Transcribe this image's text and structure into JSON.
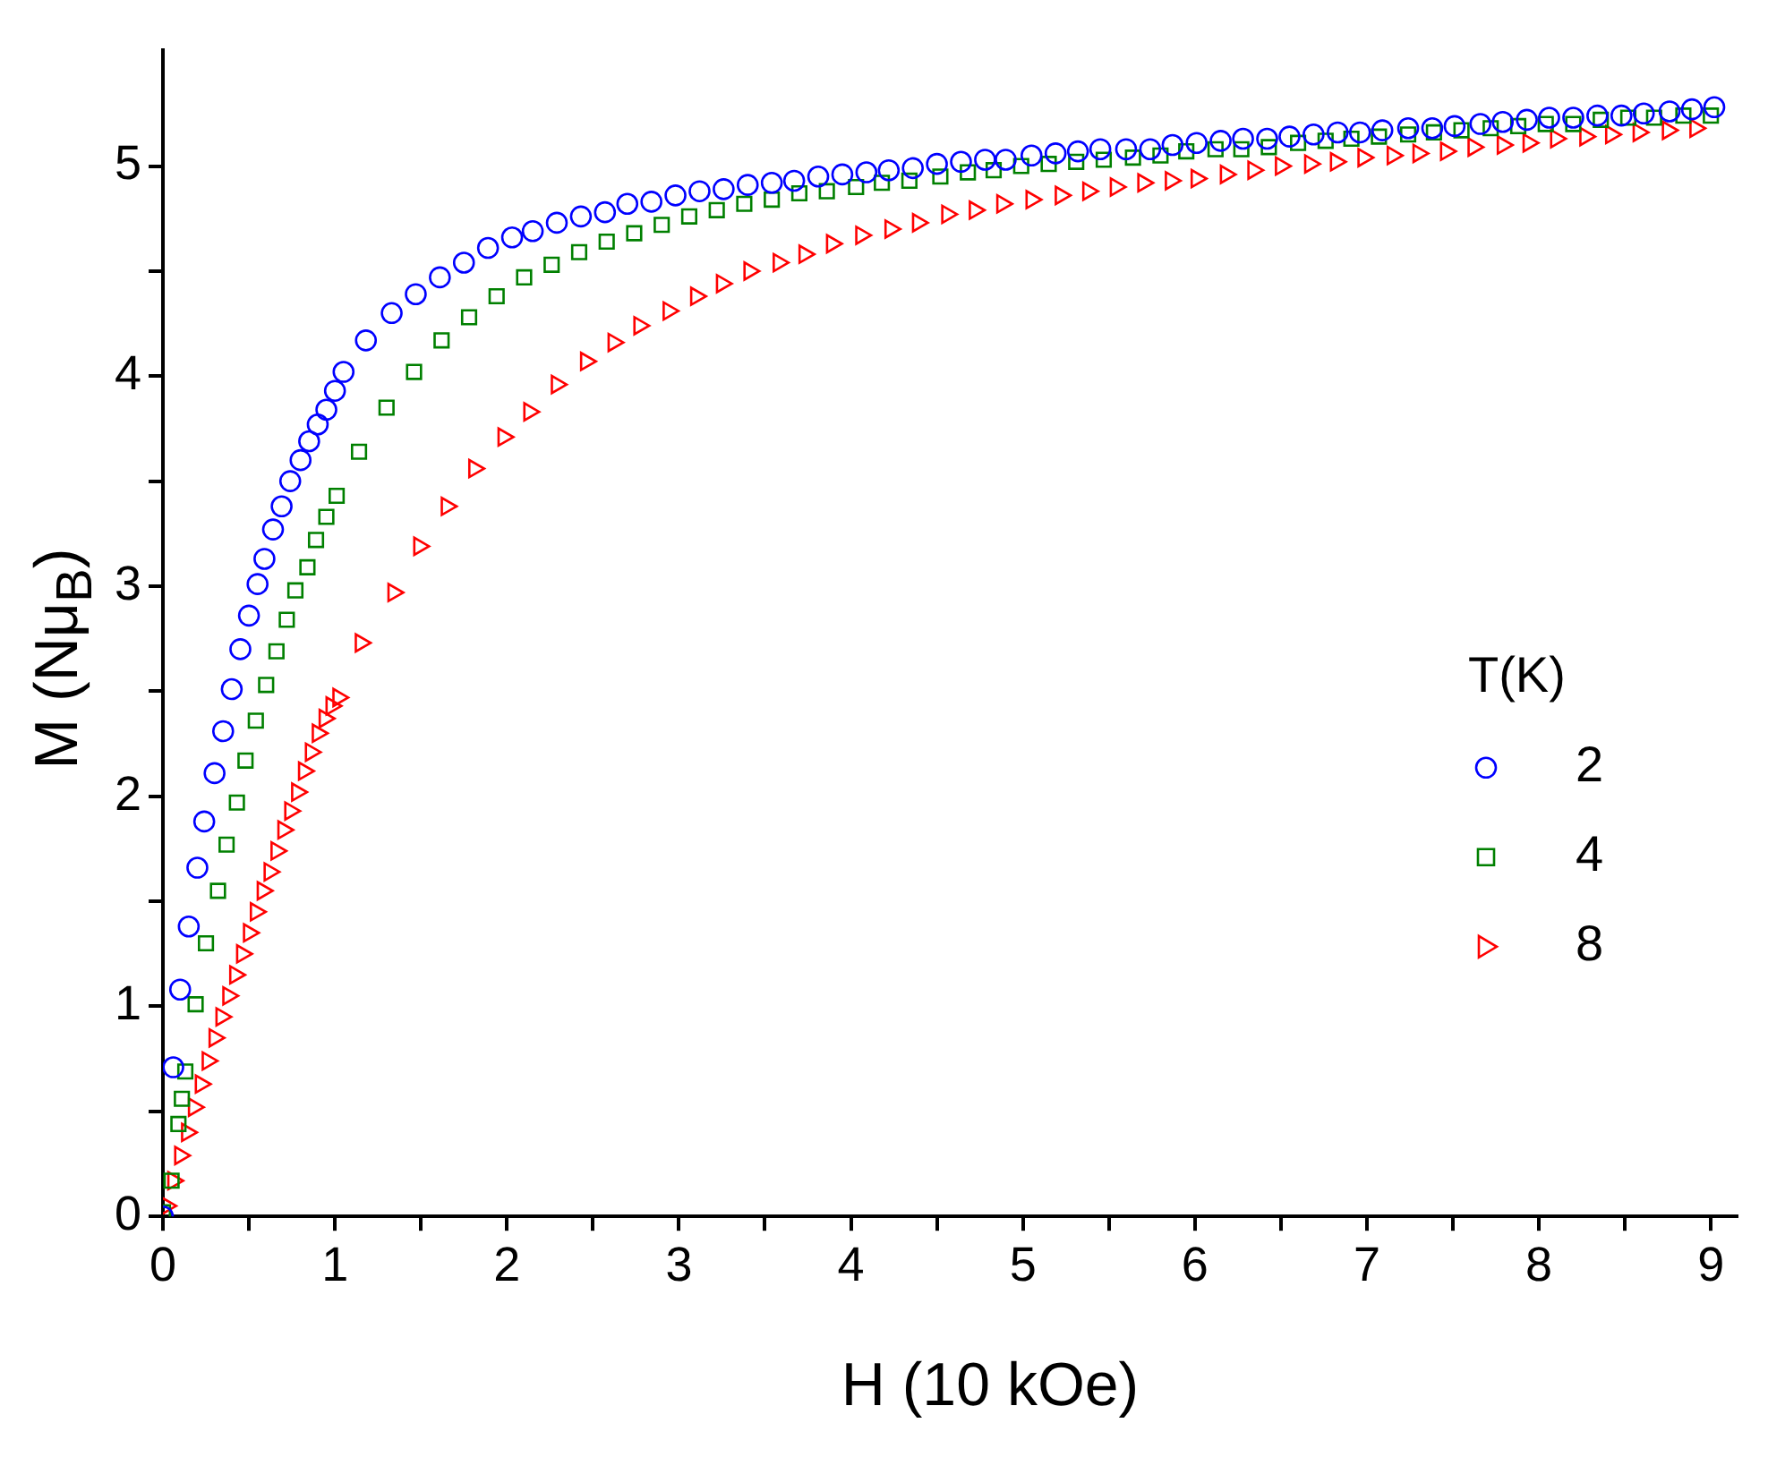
{
  "chart_data": {
    "type": "scatter",
    "xlabel": "H (10 kOe)",
    "ylabel": "M (Nμ$_{B}$)",
    "legend_title": "T(K)",
    "legend": "right",
    "grid": false,
    "xlim": [
      0,
      9.15
    ],
    "ylim": [
      0,
      5.55
    ],
    "xticks": [
      0,
      {
        "value": 0.5,
        "label": null
      },
      1,
      {
        "value": 1.5,
        "label": null
      },
      2,
      {
        "value": 2.5,
        "label": null
      },
      3,
      {
        "value": 3.5,
        "label": null
      },
      4,
      {
        "value": 4.5,
        "label": null
      },
      5,
      {
        "value": 5.5,
        "label": null
      },
      6,
      {
        "value": 6.5,
        "label": null
      },
      7,
      {
        "value": 7.5,
        "label": null
      },
      8,
      {
        "value": 8.5,
        "label": null
      },
      9
    ],
    "yticks": [
      0,
      {
        "value": 0.5,
        "label": null
      },
      1,
      {
        "value": 1.5,
        "label": null
      },
      2,
      {
        "value": 2.5,
        "label": null
      },
      3,
      {
        "value": 3.5,
        "label": null
      },
      4,
      {
        "value": 4.5,
        "label": null
      },
      5
    ],
    "series": [
      {
        "name": "2",
        "color": "#0000ff",
        "marker": "circle",
        "x": [
          0,
          0.06,
          0.1,
          0.15,
          0.2,
          0.24,
          0.3,
          0.35,
          0.4,
          0.45,
          0.5,
          0.55,
          0.59,
          0.64,
          0.69,
          0.74,
          0.8,
          0.85,
          0.9,
          0.95,
          1.0,
          1.05,
          1.18,
          1.33,
          1.47,
          1.61,
          1.75,
          1.89,
          2.03,
          2.15,
          2.29,
          2.43,
          2.57,
          2.7,
          2.84,
          2.98,
          3.12,
          3.26,
          3.4,
          3.54,
          3.67,
          3.81,
          3.95,
          4.09,
          4.22,
          4.36,
          4.5,
          4.64,
          4.78,
          4.9,
          5.05,
          5.19,
          5.32,
          5.45,
          5.6,
          5.74,
          5.87,
          6.01,
          6.15,
          6.28,
          6.42,
          6.55,
          6.69,
          6.83,
          6.96,
          7.09,
          7.24,
          7.38,
          7.51,
          7.66,
          7.79,
          7.93,
          8.06,
          8.2,
          8.34,
          8.48,
          8.61,
          8.76,
          8.89,
          9.02
        ],
        "values": [
          0,
          0.71,
          1.08,
          1.38,
          1.66,
          1.88,
          2.11,
          2.31,
          2.51,
          2.7,
          2.86,
          3.01,
          3.13,
          3.27,
          3.38,
          3.5,
          3.6,
          3.69,
          3.77,
          3.84,
          3.93,
          4.02,
          4.17,
          4.3,
          4.39,
          4.47,
          4.54,
          4.61,
          4.66,
          4.69,
          4.73,
          4.76,
          4.78,
          4.82,
          4.83,
          4.86,
          4.88,
          4.89,
          4.91,
          4.92,
          4.93,
          4.95,
          4.96,
          4.97,
          4.98,
          4.99,
          5.01,
          5.02,
          5.03,
          5.03,
          5.05,
          5.06,
          5.07,
          5.08,
          5.08,
          5.08,
          5.1,
          5.11,
          5.12,
          5.13,
          5.13,
          5.14,
          5.15,
          5.16,
          5.16,
          5.17,
          5.18,
          5.18,
          5.19,
          5.2,
          5.21,
          5.22,
          5.23,
          5.23,
          5.24,
          5.24,
          5.25,
          5.26,
          5.27,
          5.28
        ]
      },
      {
        "name": "4",
        "color": "#008000",
        "marker": "square",
        "x": [
          0,
          0.05,
          0.09,
          0.11,
          0.13,
          0.19,
          0.25,
          0.32,
          0.37,
          0.43,
          0.48,
          0.54,
          0.6,
          0.66,
          0.72,
          0.77,
          0.84,
          0.89,
          0.95,
          1.01,
          1.14,
          1.3,
          1.46,
          1.62,
          1.78,
          1.94,
          2.1,
          2.26,
          2.42,
          2.58,
          2.74,
          2.9,
          3.06,
          3.22,
          3.38,
          3.54,
          3.7,
          3.86,
          4.03,
          4.18,
          4.34,
          4.52,
          4.68,
          4.83,
          4.99,
          5.15,
          5.31,
          5.47,
          5.64,
          5.8,
          5.95,
          6.12,
          6.27,
          6.43,
          6.6,
          6.76,
          6.91,
          7.07,
          7.24,
          7.39,
          7.55,
          7.72,
          7.88,
          8.04,
          8.2,
          8.36,
          8.52,
          8.67,
          8.84,
          9.0
        ],
        "values": [
          0.02,
          0.17,
          0.44,
          0.56,
          0.69,
          1.01,
          1.3,
          1.55,
          1.77,
          1.97,
          2.17,
          2.36,
          2.53,
          2.69,
          2.84,
          2.98,
          3.09,
          3.22,
          3.33,
          3.43,
          3.64,
          3.85,
          4.02,
          4.17,
          4.28,
          4.38,
          4.47,
          4.53,
          4.59,
          4.64,
          4.68,
          4.72,
          4.76,
          4.79,
          4.82,
          4.84,
          4.87,
          4.88,
          4.9,
          4.92,
          4.93,
          4.95,
          4.97,
          4.98,
          5.0,
          5.01,
          5.02,
          5.03,
          5.04,
          5.05,
          5.07,
          5.08,
          5.08,
          5.09,
          5.11,
          5.12,
          5.13,
          5.14,
          5.15,
          5.16,
          5.17,
          5.18,
          5.19,
          5.2,
          5.2,
          5.22,
          5.23,
          5.23,
          5.24,
          5.24
        ]
      },
      {
        "name": "8",
        "color": "#ff0000",
        "marker": "triangle",
        "x": [
          0.02,
          0.06,
          0.1,
          0.14,
          0.18,
          0.22,
          0.26,
          0.3,
          0.34,
          0.38,
          0.42,
          0.46,
          0.5,
          0.54,
          0.58,
          0.62,
          0.66,
          0.7,
          0.74,
          0.78,
          0.82,
          0.86,
          0.9,
          0.94,
          0.98,
          1.02,
          1.15,
          1.34,
          1.49,
          1.65,
          1.81,
          1.98,
          2.13,
          2.29,
          2.46,
          2.62,
          2.77,
          2.94,
          3.1,
          3.25,
          3.41,
          3.58,
          3.73,
          3.89,
          4.06,
          4.23,
          4.39,
          4.56,
          4.72,
          4.88,
          5.05,
          5.22,
          5.38,
          5.54,
          5.7,
          5.86,
          6.01,
          6.18,
          6.34,
          6.5,
          6.67,
          6.82,
          6.98,
          7.15,
          7.3,
          7.46,
          7.62,
          7.79,
          7.94,
          8.1,
          8.27,
          8.42,
          8.58,
          8.75,
          8.91
        ],
        "values": [
          0.05,
          0.17,
          0.29,
          0.4,
          0.52,
          0.63,
          0.74,
          0.85,
          0.95,
          1.05,
          1.15,
          1.25,
          1.35,
          1.45,
          1.55,
          1.64,
          1.74,
          1.84,
          1.93,
          2.02,
          2.12,
          2.21,
          2.3,
          2.37,
          2.43,
          2.47,
          2.73,
          2.97,
          3.19,
          3.38,
          3.56,
          3.71,
          3.83,
          3.96,
          4.07,
          4.16,
          4.24,
          4.31,
          4.38,
          4.44,
          4.5,
          4.54,
          4.58,
          4.63,
          4.67,
          4.7,
          4.73,
          4.77,
          4.79,
          4.82,
          4.84,
          4.86,
          4.88,
          4.9,
          4.92,
          4.93,
          4.94,
          4.96,
          4.98,
          5.0,
          5.01,
          5.02,
          5.04,
          5.05,
          5.06,
          5.07,
          5.09,
          5.1,
          5.11,
          5.13,
          5.14,
          5.15,
          5.16,
          5.17,
          5.18
        ]
      }
    ]
  }
}
